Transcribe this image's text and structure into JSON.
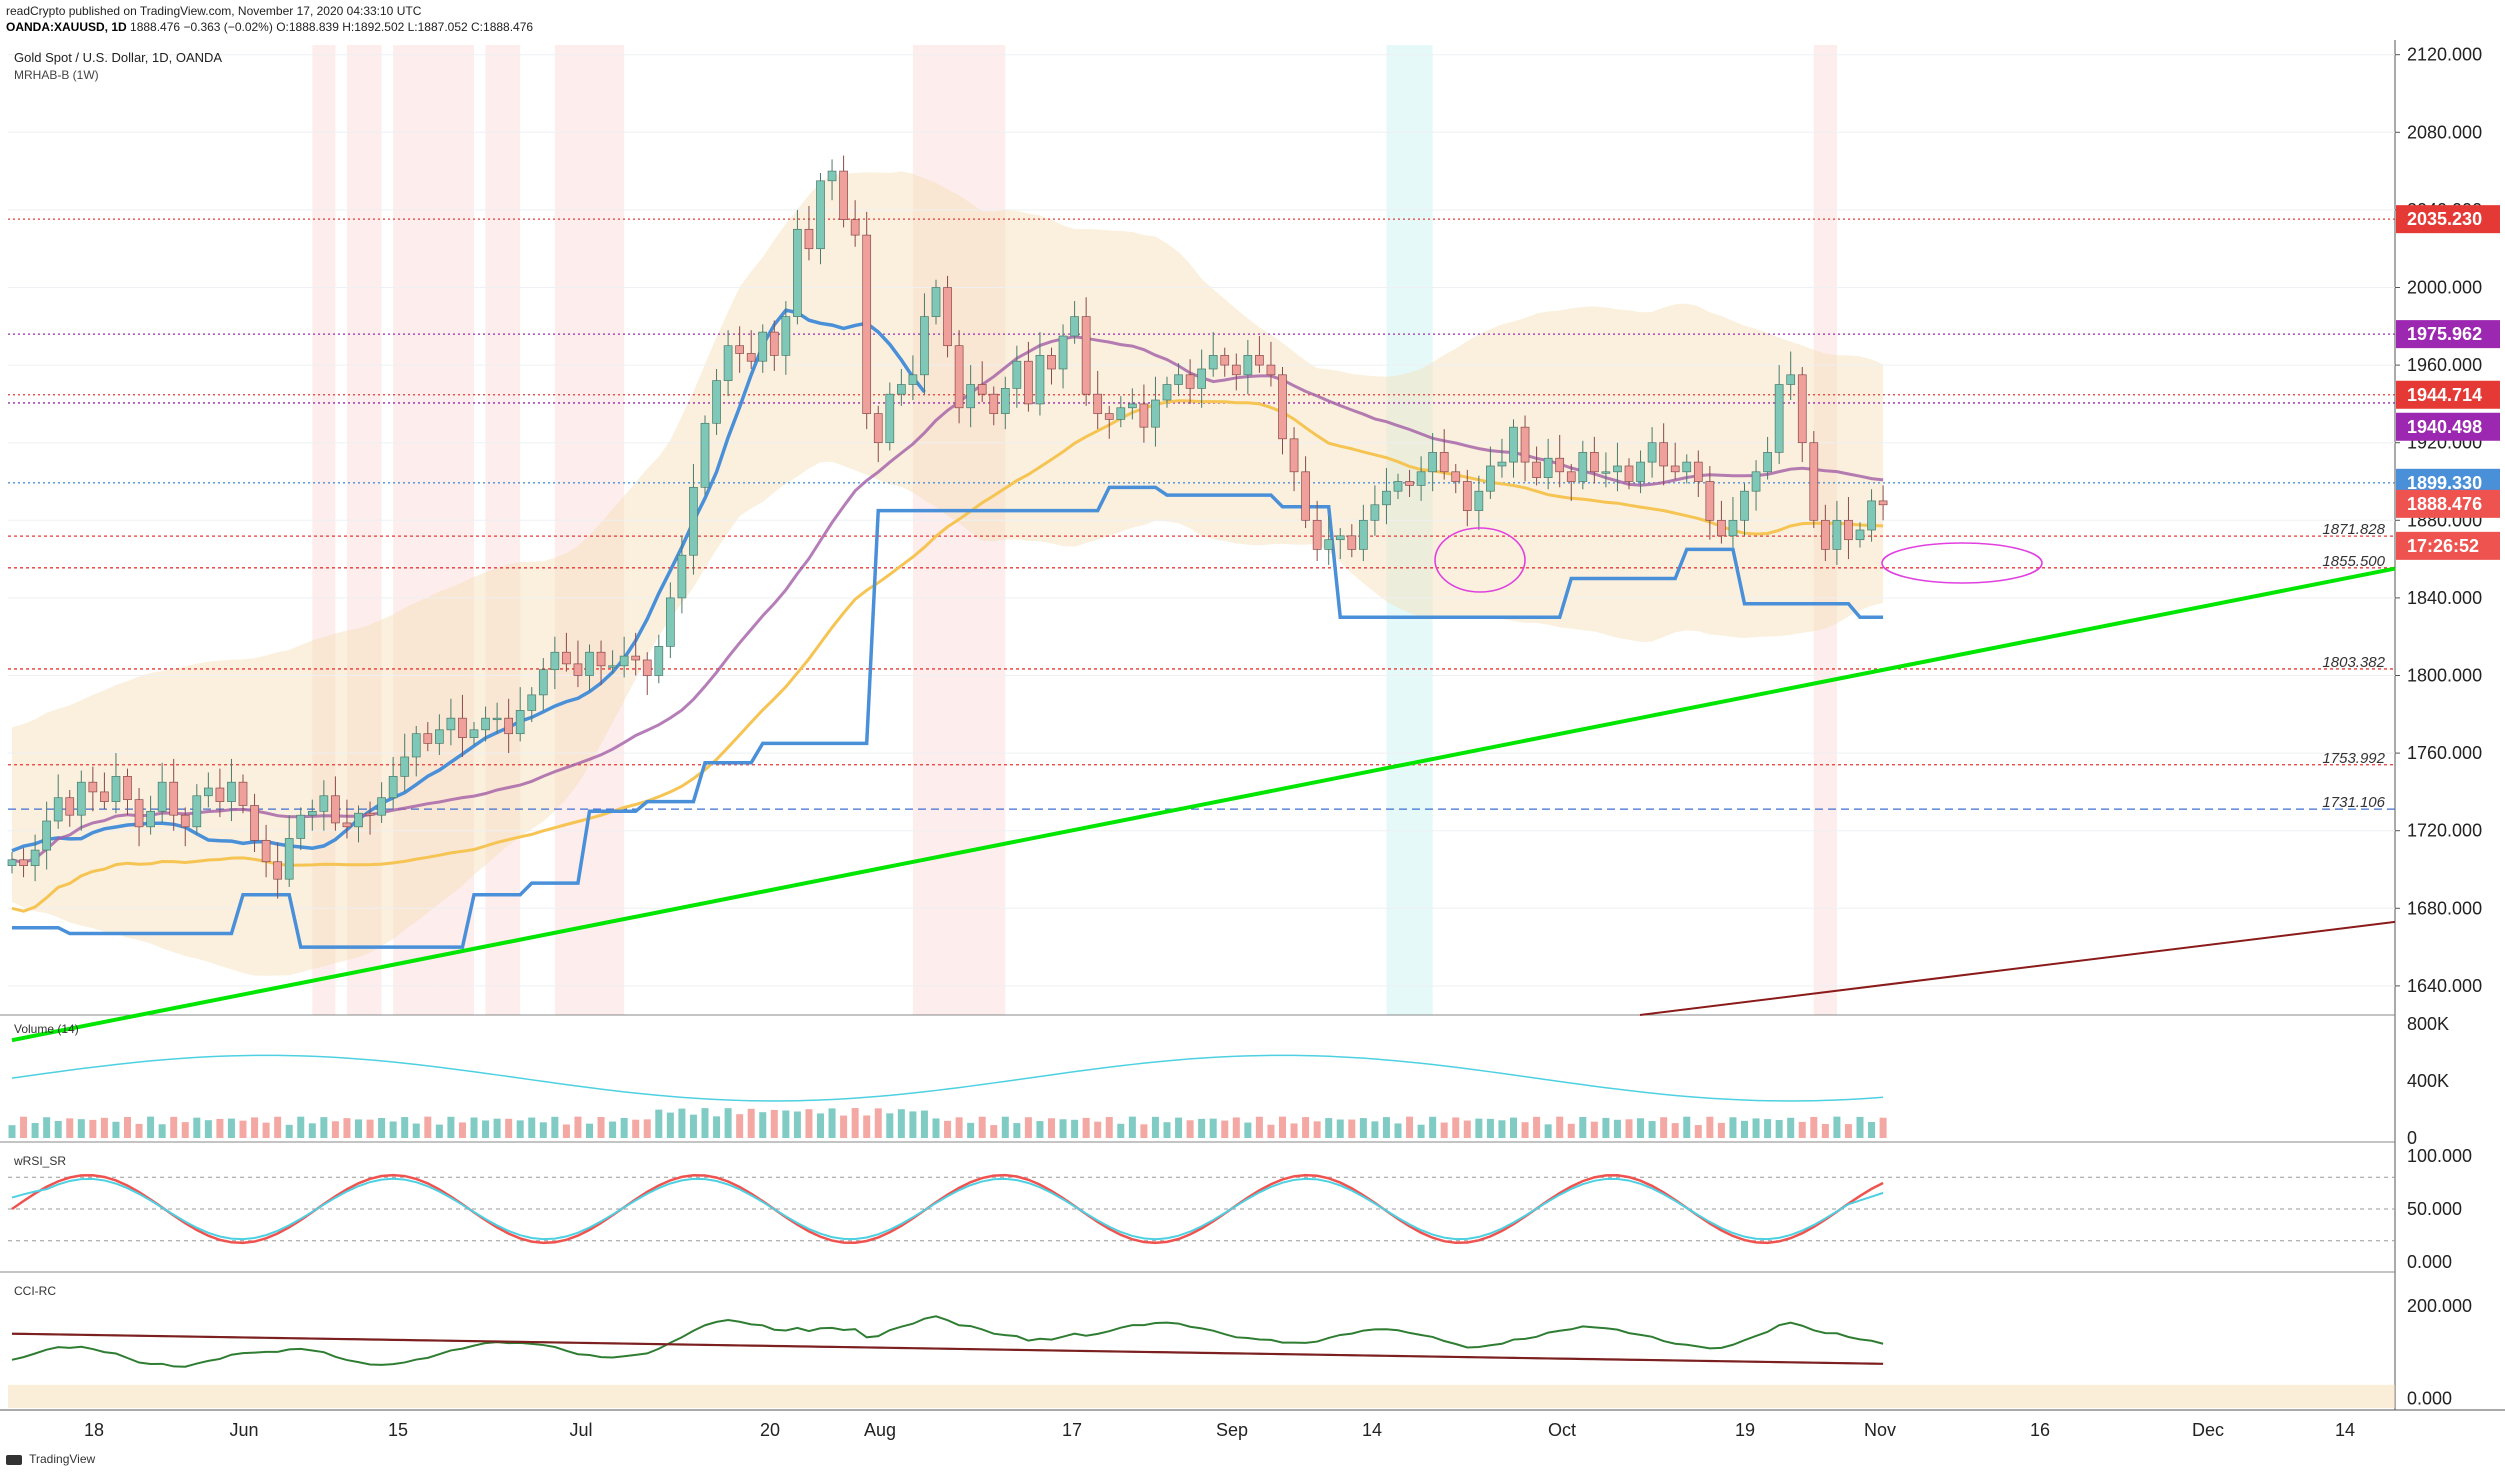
{
  "header": {
    "publisher_line": "readCrypto published on TradingView.com, November 17, 2020 04:33:10 UTC",
    "symbol": "OANDA:XAUUSD, 1D",
    "last": "1888.476",
    "change": "−0.363 (−0.02%)",
    "ohlc": "O:1888.839 H:1892.502 L:1887.052 C:1888.476"
  },
  "main_panel": {
    "title": "Gold Spot / U.S. Dollar, 1D, OANDA",
    "indicator": "MRHAB-B (1W)"
  },
  "panels": {
    "volume_label": "Volume (14)",
    "wrsi_label": "wRSI_SR",
    "cci_label": "CCI-RC"
  },
  "footer": {
    "brand": "TradingView"
  },
  "colors": {
    "up": "#26a69a",
    "down": "#ef5350",
    "support": "#00e600",
    "blue_line": "#4a90d9",
    "yellow_ma": "#f6c453",
    "purple_ma": "#a35ea6",
    "band": "#f5deb3"
  },
  "chart_data": {
    "type": "candlestick",
    "symbol": "XAUUSD",
    "timeframe": "1D",
    "ylim": [
      1625,
      2125
    ],
    "price_ticks": [
      "2120.000",
      "2080.000",
      "2040.000",
      "2000.000",
      "1960.000",
      "1920.000",
      "1880.000",
      "1840.000",
      "1800.000",
      "1760.000",
      "1720.000",
      "1680.000",
      "1640.000"
    ],
    "time_labels": [
      "18",
      "Jun",
      "15",
      "Jul",
      "20",
      "Aug",
      "17",
      "Sep",
      "14",
      "Oct",
      "19",
      "Nov",
      "16",
      "Dec",
      "14"
    ],
    "price_badges": [
      {
        "label": "2035.230",
        "value": 2035.23,
        "color": "#e53935"
      },
      {
        "label": "1975.962",
        "value": 1975.962,
        "color": "#9c27b0"
      },
      {
        "label": "1944.714",
        "value": 1944.714,
        "color": "#e53935"
      },
      {
        "label": "1940.498",
        "value": 1940.498,
        "color": "#9c27b0"
      },
      {
        "label": "1899.330",
        "value": 1899.33,
        "color": "#4a90d9"
      },
      {
        "label": "1888.476",
        "value": 1888.476,
        "color": "#ef5350"
      },
      {
        "label": "17:26:52",
        "value": 1872,
        "color": "#ef5350"
      }
    ],
    "levels": [
      {
        "label": "1871.828",
        "value": 1871.828
      },
      {
        "label": "1855.500",
        "value": 1855.5
      },
      {
        "label": "1803.382",
        "value": 1803.382
      },
      {
        "label": "1753.992",
        "value": 1753.992
      },
      {
        "label": "1731.106",
        "value": 1731.106
      }
    ],
    "trendline": {
      "from": {
        "day": 0,
        "price": 1612
      },
      "to": {
        "day": 185,
        "price": 1830
      }
    },
    "close": [
      1705,
      1702,
      1710,
      1725,
      1737,
      1728,
      1745,
      1740,
      1735,
      1748,
      1736,
      1722,
      1730,
      1745,
      1728,
      1722,
      1738,
      1742,
      1735,
      1745,
      1733,
      1715,
      1704,
      1695,
      1716,
      1728,
      1730,
      1738,
      1724,
      1722,
      1729,
      1728,
      1737,
      1748,
      1758,
      1770,
      1765,
      1772,
      1778,
      1768,
      1772,
      1778,
      1778,
      1770,
      1782,
      1790,
      1803,
      1812,
      1806,
      1800,
      1812,
      1805,
      1805,
      1810,
      1808,
      1800,
      1815,
      1840,
      1862,
      1897,
      1930,
      1952,
      1970,
      1966,
      1962,
      1977,
      1965,
      1985,
      2030,
      2020,
      2055,
      2060,
      2035,
      2027,
      1935,
      1920,
      1945,
      1950,
      1955,
      1985,
      2000,
      1970,
      1938,
      1950,
      1945,
      1935,
      1948,
      1962,
      1940,
      1965,
      1958,
      1975,
      1985,
      1945,
      1935,
      1932,
      1938,
      1940,
      1928,
      1942,
      1950,
      1955,
      1948,
      1958,
      1965,
      1960,
      1955,
      1965,
      1960,
      1955,
      1922,
      1905,
      1880,
      1865,
      1870,
      1872,
      1865,
      1880,
      1888,
      1895,
      1900,
      1898,
      1905,
      1915,
      1905,
      1900,
      1885,
      1895,
      1908,
      1910,
      1928,
      1910,
      1902,
      1912,
      1905,
      1900,
      1915,
      1905,
      1905,
      1908,
      1900,
      1910,
      1920,
      1908,
      1905,
      1910,
      1900,
      1880,
      1872,
      1880,
      1895,
      1905,
      1915,
      1950,
      1955,
      1920,
      1880,
      1865,
      1880,
      1870,
      1875,
      1890,
      1888
    ],
    "volume_ylim": [
      0,
      800000
    ],
    "volume_ticks": [
      "800K",
      "400K",
      "0"
    ],
    "wrsi_ylim": [
      0,
      100
    ],
    "wrsi_ticks": [
      "100.000",
      "50.000",
      "0.000"
    ],
    "cci_ylim": [
      -20,
      260
    ],
    "cci_ticks": [
      "200.000",
      "0.000"
    ]
  }
}
